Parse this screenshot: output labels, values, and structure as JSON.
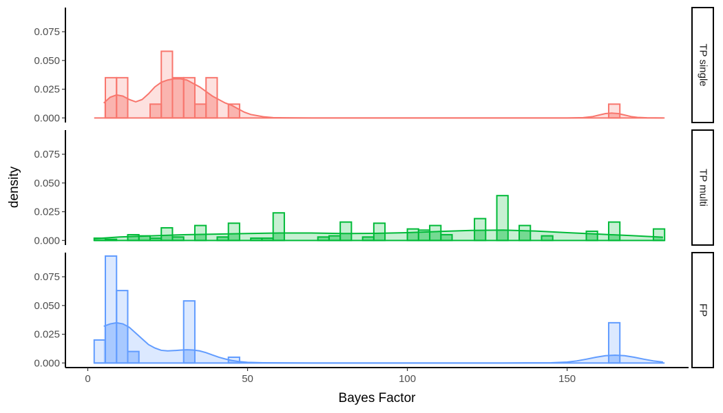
{
  "chart_data": {
    "type": "histogram-density-facets",
    "xlabel": "Bayes Factor",
    "ylabel": "density",
    "xlim": [
      -7,
      188
    ],
    "ylim": [
      -0.004,
      0.096
    ],
    "x_ticks": [
      0,
      50,
      100,
      150
    ],
    "y_ticks": [
      0.0,
      0.025,
      0.05,
      0.075
    ],
    "y_tick_labels": [
      "0.000",
      "0.025",
      "0.050",
      "0.075"
    ],
    "bin_width": 3.5,
    "panels": [
      {
        "name": "TP single",
        "color": "#F8766D",
        "overlap_color": "#F49A94",
        "bins": [
          {
            "x0": 5.5,
            "value": 0.035
          },
          {
            "x0": 9.0,
            "value": 0.035
          },
          {
            "x0": 19.5,
            "value": 0.012
          },
          {
            "x0": 23.0,
            "value": 0.058
          },
          {
            "x0": 26.5,
            "value": 0.035
          },
          {
            "x0": 30.0,
            "value": 0.035
          },
          {
            "x0": 33.5,
            "value": 0.012
          },
          {
            "x0": 37.0,
            "value": 0.035
          },
          {
            "x0": 44.0,
            "value": 0.012
          },
          {
            "x0": 163.0,
            "value": 0.012
          }
        ],
        "density": {
          "x": [
            5,
            7,
            9,
            11,
            13,
            15,
            17,
            19,
            21,
            23,
            25,
            27,
            29,
            31,
            33,
            35,
            37,
            39,
            41,
            43,
            45,
            47,
            49,
            51,
            53,
            55,
            58,
            62,
            70,
            90,
            120,
            150,
            155,
            158,
            160,
            162,
            164,
            166,
            168,
            170,
            172,
            175,
            180
          ],
          "y": [
            0.013,
            0.018,
            0.02,
            0.019,
            0.016,
            0.014,
            0.016,
            0.021,
            0.027,
            0.031,
            0.033,
            0.034,
            0.034,
            0.033,
            0.03,
            0.027,
            0.023,
            0.019,
            0.016,
            0.013,
            0.011,
            0.008,
            0.005,
            0.003,
            0.002,
            0.001,
            0.0003,
            0.0001,
            0.0,
            0.0,
            0.0,
            0.0,
            0.0003,
            0.0012,
            0.0025,
            0.0038,
            0.0042,
            0.0038,
            0.0025,
            0.0012,
            0.0005,
            0.0001,
            0.0
          ]
        }
      },
      {
        "name": "TP multi",
        "color": "#00BA38",
        "overlap_color": "#7DD193",
        "bins": [
          {
            "x0": 2.0,
            "value": 0.002
          },
          {
            "x0": 5.5,
            "value": 0.001
          },
          {
            "x0": 12.5,
            "value": 0.005
          },
          {
            "x0": 16.0,
            "value": 0.004
          },
          {
            "x0": 19.5,
            "value": 0.002
          },
          {
            "x0": 23.0,
            "value": 0.011
          },
          {
            "x0": 26.5,
            "value": 0.003
          },
          {
            "x0": 33.5,
            "value": 0.013
          },
          {
            "x0": 40.5,
            "value": 0.003
          },
          {
            "x0": 44.0,
            "value": 0.015
          },
          {
            "x0": 51.0,
            "value": 0.002
          },
          {
            "x0": 54.5,
            "value": 0.002
          },
          {
            "x0": 58.0,
            "value": 0.024
          },
          {
            "x0": 72.0,
            "value": 0.003
          },
          {
            "x0": 75.5,
            "value": 0.004
          },
          {
            "x0": 79.0,
            "value": 0.016
          },
          {
            "x0": 86.0,
            "value": 0.003
          },
          {
            "x0": 89.5,
            "value": 0.015
          },
          {
            "x0": 100.0,
            "value": 0.01
          },
          {
            "x0": 103.5,
            "value": 0.009
          },
          {
            "x0": 107.0,
            "value": 0.013
          },
          {
            "x0": 110.5,
            "value": 0.005
          },
          {
            "x0": 121.0,
            "value": 0.019
          },
          {
            "x0": 128.0,
            "value": 0.039
          },
          {
            "x0": 135.0,
            "value": 0.013
          },
          {
            "x0": 142.0,
            "value": 0.004
          },
          {
            "x0": 156.0,
            "value": 0.008
          },
          {
            "x0": 163.0,
            "value": 0.016
          },
          {
            "x0": 177.0,
            "value": 0.01
          }
        ],
        "density": {
          "x": [
            2,
            10,
            20,
            30,
            40,
            50,
            60,
            70,
            80,
            90,
            100,
            110,
            120,
            130,
            140,
            150,
            160,
            170,
            180
          ],
          "y": [
            0.0015,
            0.003,
            0.004,
            0.005,
            0.0055,
            0.006,
            0.0065,
            0.0065,
            0.006,
            0.0062,
            0.0068,
            0.0078,
            0.0087,
            0.009,
            0.0082,
            0.0068,
            0.0055,
            0.0042,
            0.0028
          ]
        }
      },
      {
        "name": "FP",
        "color": "#619CFF",
        "overlap_color": "#A9C8FF",
        "bins": [
          {
            "x0": 2.0,
            "value": 0.02
          },
          {
            "x0": 5.5,
            "value": 0.093
          },
          {
            "x0": 9.0,
            "value": 0.063
          },
          {
            "x0": 12.5,
            "value": 0.01
          },
          {
            "x0": 30.0,
            "value": 0.054
          },
          {
            "x0": 44.0,
            "value": 0.005
          },
          {
            "x0": 163.0,
            "value": 0.035
          }
        ],
        "density": {
          "x": [
            5,
            7,
            9,
            11,
            13,
            15,
            17,
            19,
            21,
            23,
            25,
            27,
            29,
            31,
            33,
            35,
            37,
            39,
            41,
            43,
            45,
            47,
            50,
            55,
            60,
            70,
            100,
            130,
            145,
            150,
            153,
            156,
            159,
            162,
            165,
            168,
            171,
            174,
            177,
            180
          ],
          "y": [
            0.032,
            0.034,
            0.035,
            0.034,
            0.031,
            0.026,
            0.021,
            0.016,
            0.013,
            0.011,
            0.0105,
            0.0108,
            0.0112,
            0.0115,
            0.0113,
            0.0105,
            0.009,
            0.007,
            0.005,
            0.0035,
            0.0022,
            0.0013,
            0.0006,
            0.0002,
            0.0001,
            0.0,
            0.0,
            0.0,
            0.0002,
            0.0008,
            0.0018,
            0.0033,
            0.005,
            0.0063,
            0.0068,
            0.0063,
            0.005,
            0.0033,
            0.0018,
            0.0008
          ]
        }
      }
    ]
  }
}
